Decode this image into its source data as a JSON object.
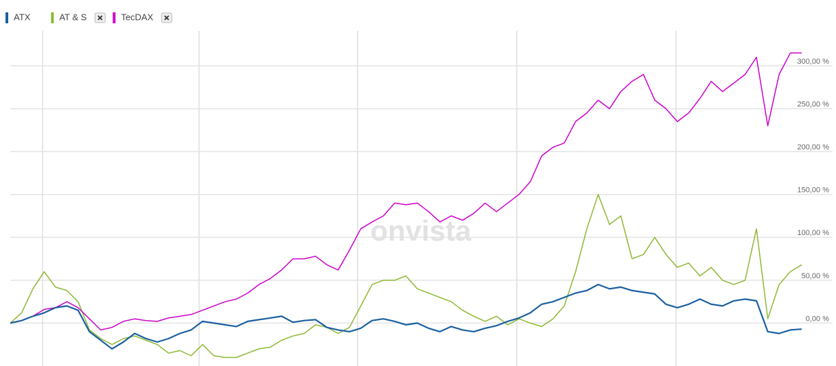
{
  "chart_data": {
    "type": "line",
    "watermark": "onvista",
    "ylim": [
      -50,
      340
    ],
    "yticks": [
      {
        "value": 0,
        "label": "0,00 %"
      },
      {
        "value": 50,
        "label": "50,00 %"
      },
      {
        "value": 100,
        "label": "100,00 %"
      },
      {
        "value": 150,
        "label": "150,00 %"
      },
      {
        "value": 200,
        "label": "200,00 %"
      },
      {
        "value": 250,
        "label": "250,00 %"
      },
      {
        "value": 300,
        "label": "300,00 %"
      }
    ],
    "grid": true,
    "legend": "top-left",
    "series": [
      {
        "name": "ATX",
        "color": "#1a5fa0",
        "values": [
          0,
          3,
          8,
          12,
          18,
          20,
          15,
          -10,
          -20,
          -30,
          -22,
          -12,
          -18,
          -22,
          -18,
          -12,
          -8,
          2,
          0,
          -2,
          -4,
          2,
          4,
          6,
          8,
          1,
          3,
          4,
          -5,
          -8,
          -10,
          -6,
          3,
          5,
          2,
          -2,
          0,
          -6,
          -10,
          -4,
          -8,
          -10,
          -6,
          -3,
          2,
          6,
          12,
          22,
          25,
          30,
          35,
          38,
          45,
          40,
          42,
          38,
          36,
          34,
          22,
          18,
          22,
          28,
          22,
          20,
          26,
          28,
          26,
          -10,
          -12,
          -8,
          -7
        ]
      },
      {
        "name": "AT & S",
        "color": "#8db833",
        "values": [
          0,
          12,
          40,
          60,
          42,
          38,
          25,
          -8,
          -18,
          -25,
          -18,
          -15,
          -20,
          -25,
          -35,
          -32,
          -38,
          -25,
          -38,
          -40,
          -40,
          -35,
          -30,
          -28,
          -20,
          -15,
          -12,
          -2,
          -5,
          -12,
          -5,
          20,
          45,
          50,
          50,
          55,
          40,
          35,
          30,
          25,
          15,
          8,
          2,
          8,
          -2,
          5,
          0,
          -4,
          5,
          20,
          60,
          110,
          150,
          115,
          125,
          75,
          80,
          100,
          80,
          65,
          70,
          55,
          65,
          50,
          45,
          50,
          110,
          5,
          45,
          60,
          68
        ]
      },
      {
        "name": "TecDAX",
        "color": "#cc00cc",
        "values": [
          0,
          3,
          8,
          16,
          18,
          25,
          18,
          5,
          -8,
          -5,
          2,
          5,
          3,
          2,
          6,
          8,
          10,
          15,
          20,
          25,
          28,
          35,
          45,
          52,
          62,
          75,
          75,
          78,
          68,
          62,
          85,
          110,
          118,
          125,
          140,
          138,
          140,
          130,
          118,
          125,
          120,
          128,
          140,
          130,
          140,
          150,
          165,
          195,
          205,
          210,
          235,
          245,
          260,
          250,
          270,
          282,
          290,
          260,
          250,
          235,
          245,
          262,
          282,
          270,
          280,
          290,
          310,
          230,
          290,
          315,
          315
        ]
      }
    ]
  }
}
